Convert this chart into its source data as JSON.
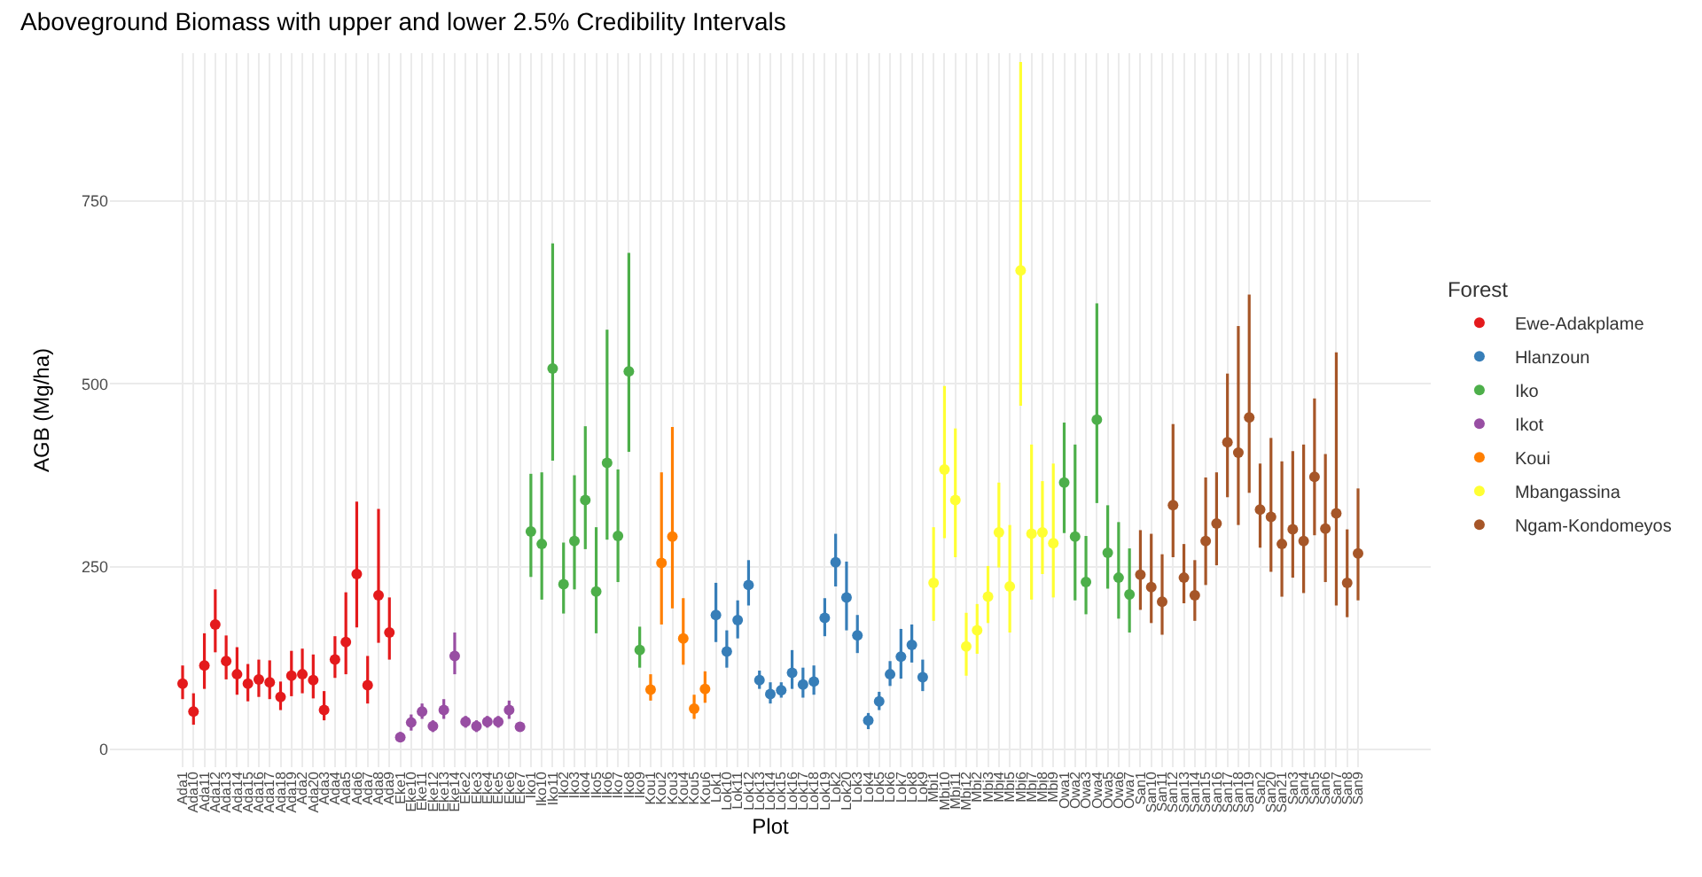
{
  "chart_data": {
    "type": "scatter",
    "title": "Aboveground Biomass with upper and lower 2.5% Credibility Intervals",
    "xlabel": "Plot",
    "ylabel": "AGB (Mg/ha)",
    "legend_title": "Forest",
    "legend": "right",
    "grid": true,
    "marker": "circle",
    "ylim": [
      -24,
      952
    ],
    "yticks": [
      0,
      250,
      500,
      750
    ],
    "categories": [
      "Ada1",
      "Ada10",
      "Ada11",
      "Ada12",
      "Ada13",
      "Ada14",
      "Ada15",
      "Ada16",
      "Ada17",
      "Ada18",
      "Ada19",
      "Ada2",
      "Ada20",
      "Ada3",
      "Ada4",
      "Ada5",
      "Ada6",
      "Ada7",
      "Ada8",
      "Ada9",
      "Eke1",
      "Eke10",
      "Eke11",
      "Eke12",
      "Eke13",
      "Eke14",
      "Eke2",
      "Eke3",
      "Eke4",
      "Eke5",
      "Eke6",
      "Eke7",
      "Iko1",
      "Iko10",
      "Iko11",
      "Iko2",
      "Iko3",
      "Iko4",
      "Iko5",
      "Iko6",
      "Iko7",
      "Iko8",
      "Iko9",
      "Kou1",
      "Kou2",
      "Kou3",
      "Kou4",
      "Kou5",
      "Kou6",
      "Lok1",
      "Lok10",
      "Lok11",
      "Lok12",
      "Lok13",
      "Lok14",
      "Lok15",
      "Lok16",
      "Lok17",
      "Lok18",
      "Lok19",
      "Lok2",
      "Lok20",
      "Lok3",
      "Lok4",
      "Lok5",
      "Lok6",
      "Lok7",
      "Lok8",
      "Lok9",
      "Mbi1",
      "Mbi10",
      "Mbi11",
      "Mbi12",
      "Mbi2",
      "Mbi3",
      "Mbi4",
      "Mbi5",
      "Mbi6",
      "Mbi7",
      "Mbi8",
      "Mbi9",
      "Owa1",
      "Owa2",
      "Owa3",
      "Owa4",
      "Owa5",
      "Owa6",
      "Owa7",
      "San1",
      "San10",
      "San11",
      "San12",
      "San13",
      "San14",
      "San15",
      "San16",
      "San17",
      "San18",
      "San19",
      "San2",
      "San20",
      "San21",
      "San3",
      "San4",
      "San5",
      "San6",
      "San7",
      "San8",
      "San9"
    ],
    "series": [
      {
        "name": "Ewe-Adakplame",
        "color": "#e41a1c",
        "x": [
          "Ada1",
          "Ada10",
          "Ada11",
          "Ada12",
          "Ada13",
          "Ada14",
          "Ada15",
          "Ada16",
          "Ada17",
          "Ada18",
          "Ada19",
          "Ada2",
          "Ada20",
          "Ada3",
          "Ada4",
          "Ada5",
          "Ada6",
          "Ada7",
          "Ada8",
          "Ada9"
        ],
        "values": [
          90,
          52,
          115,
          171,
          121,
          103,
          90,
          96,
          92,
          72,
          101,
          103,
          95,
          54,
          123,
          147,
          240,
          88,
          211,
          160
        ],
        "errors": [
          [
            69,
            115
          ],
          [
            34,
            77
          ],
          [
            83,
            159
          ],
          [
            133,
            219
          ],
          [
            96,
            156
          ],
          [
            75,
            140
          ],
          [
            66,
            117
          ],
          [
            72,
            123
          ],
          [
            69,
            122
          ],
          [
            54,
            93
          ],
          [
            73,
            135
          ],
          [
            77,
            138
          ],
          [
            70,
            130
          ],
          [
            40,
            80
          ],
          [
            98,
            155
          ],
          [
            103,
            215
          ],
          [
            167,
            339
          ],
          [
            63,
            128
          ],
          [
            146,
            329
          ],
          [
            123,
            208
          ]
        ]
      },
      {
        "name": "Hlanzoun",
        "color": "#377eb8",
        "x": [
          "Lok1",
          "Lok10",
          "Lok11",
          "Lok12",
          "Lok13",
          "Lok14",
          "Lok15",
          "Lok16",
          "Lok17",
          "Lok18",
          "Lok19",
          "Lok2",
          "Lok20",
          "Lok3",
          "Lok4",
          "Lok5",
          "Lok6",
          "Lok7",
          "Lok8",
          "Lok9"
        ],
        "values": [
          184,
          134,
          177,
          225,
          95,
          76,
          81,
          105,
          89,
          93,
          180,
          256,
          208,
          156,
          40,
          66,
          103,
          127,
          143,
          99
        ],
        "errors": [
          [
            147,
            228
          ],
          [
            112,
            163
          ],
          [
            152,
            204
          ],
          [
            197,
            259
          ],
          [
            83,
            108
          ],
          [
            63,
            92
          ],
          [
            71,
            92
          ],
          [
            83,
            136
          ],
          [
            71,
            112
          ],
          [
            75,
            115
          ],
          [
            155,
            207
          ],
          [
            223,
            295
          ],
          [
            163,
            257
          ],
          [
            132,
            184
          ],
          [
            28,
            50
          ],
          [
            54,
            79
          ],
          [
            87,
            121
          ],
          [
            97,
            165
          ],
          [
            119,
            171
          ],
          [
            80,
            123
          ]
        ]
      },
      {
        "name": "Iko",
        "color": "#4daf4a",
        "x": [
          "Iko1",
          "Iko10",
          "Iko11",
          "Iko2",
          "Iko3",
          "Iko4",
          "Iko5",
          "Iko6",
          "Iko7",
          "Iko8",
          "Iko9",
          "Owa1",
          "Owa2",
          "Owa3",
          "Owa4",
          "Owa5",
          "Owa6",
          "Owa7"
        ],
        "values": [
          298,
          281,
          521,
          226,
          285,
          341,
          216,
          392,
          292,
          517,
          136,
          365,
          291,
          229,
          451,
          269,
          235,
          212
        ],
        "errors": [
          [
            236,
            377
          ],
          [
            205,
            379
          ],
          [
            395,
            692
          ],
          [
            186,
            283
          ],
          [
            219,
            375
          ],
          [
            274,
            442
          ],
          [
            159,
            304
          ],
          [
            287,
            574
          ],
          [
            229,
            383
          ],
          [
            407,
            679
          ],
          [
            112,
            168
          ],
          [
            296,
            447
          ],
          [
            204,
            417
          ],
          [
            185,
            292
          ],
          [
            337,
            610
          ],
          [
            220,
            334
          ],
          [
            179,
            311
          ],
          [
            160,
            275
          ]
        ]
      },
      {
        "name": "Ikot",
        "color": "#984ea3",
        "x": [
          "Eke1",
          "Eke10",
          "Eke11",
          "Eke12",
          "Eke13",
          "Eke14",
          "Eke2",
          "Eke3",
          "Eke4",
          "Eke5",
          "Eke6",
          "Eke7"
        ],
        "values": [
          17,
          37,
          52,
          32,
          54,
          128,
          38,
          32,
          38,
          38,
          54,
          31
        ],
        "errors": [
          [
            10,
            24
          ],
          [
            26,
            48
          ],
          [
            42,
            63
          ],
          [
            24,
            40
          ],
          [
            42,
            69
          ],
          [
            103,
            160
          ],
          [
            30,
            46
          ],
          [
            24,
            40
          ],
          [
            30,
            46
          ],
          [
            30,
            46
          ],
          [
            42,
            67
          ],
          [
            26,
            37
          ]
        ]
      },
      {
        "name": "Koui",
        "color": "#ff7f00",
        "x": [
          "Kou1",
          "Kou2",
          "Kou3",
          "Kou4",
          "Kou5",
          "Kou6"
        ],
        "values": [
          82,
          255,
          291,
          152,
          56,
          83
        ],
        "errors": [
          [
            67,
            103
          ],
          [
            171,
            379
          ],
          [
            193,
            441
          ],
          [
            116,
            207
          ],
          [
            42,
            75
          ],
          [
            64,
            107
          ]
        ]
      },
      {
        "name": "Mbangassina",
        "color": "#ffff33",
        "x": [
          "Mbi1",
          "Mbi10",
          "Mbi11",
          "Mbi12",
          "Mbi2",
          "Mbi3",
          "Mbi4",
          "Mbi5",
          "Mbi6",
          "Mbi7",
          "Mbi8",
          "Mbi9"
        ],
        "values": [
          228,
          383,
          341,
          141,
          163,
          209,
          297,
          223,
          655,
          295,
          297,
          282
        ],
        "errors": [
          [
            176,
            304
          ],
          [
            289,
            497
          ],
          [
            263,
            439
          ],
          [
            101,
            187
          ],
          [
            131,
            199
          ],
          [
            173,
            251
          ],
          [
            249,
            365
          ],
          [
            160,
            307
          ],
          [
            470,
            940
          ],
          [
            205,
            417
          ],
          [
            240,
            367
          ],
          [
            208,
            391
          ]
        ]
      },
      {
        "name": "Ngam-Kondomeyos",
        "color": "#a65628",
        "x": [
          "San1",
          "San10",
          "San11",
          "San12",
          "San13",
          "San14",
          "San15",
          "San16",
          "San17",
          "San18",
          "San19",
          "San2",
          "San20",
          "San21",
          "San3",
          "San4",
          "San5",
          "San6",
          "San7",
          "San8",
          "San9"
        ],
        "values": [
          239,
          222,
          202,
          334,
          235,
          211,
          285,
          309,
          420,
          406,
          454,
          328,
          318,
          281,
          301,
          285,
          373,
          302,
          323,
          228,
          268
        ],
        "errors": [
          [
            191,
            300
          ],
          [
            173,
            295
          ],
          [
            157,
            267
          ],
          [
            263,
            445
          ],
          [
            200,
            281
          ],
          [
            176,
            259
          ],
          [
            225,
            372
          ],
          [
            252,
            379
          ],
          [
            345,
            514
          ],
          [
            307,
            579
          ],
          [
            351,
            622
          ],
          [
            276,
            391
          ],
          [
            243,
            426
          ],
          [
            209,
            394
          ],
          [
            235,
            408
          ],
          [
            214,
            417
          ],
          [
            293,
            480
          ],
          [
            229,
            404
          ],
          [
            197,
            543
          ],
          [
            181,
            301
          ],
          [
            204,
            357
          ]
        ]
      }
    ]
  }
}
